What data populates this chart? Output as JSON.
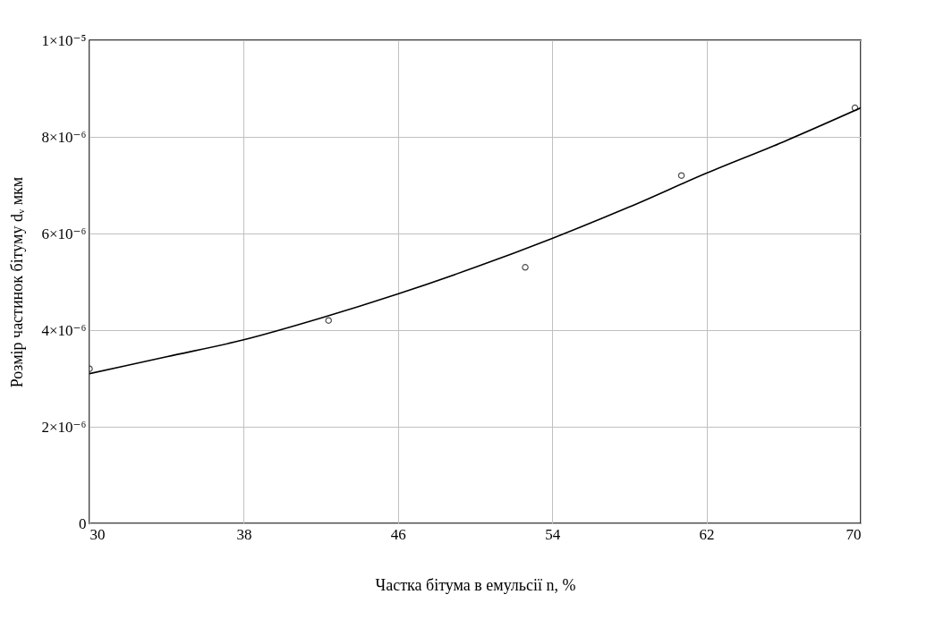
{
  "chart_data": {
    "type": "scatter",
    "xlabel": "Частка бітума в емульсії n, %",
    "ylabel": "Розмір частинок бітуму dᵥ мкм",
    "series": [
      {
        "color": "#000000",
        "marker": "circle",
        "x": [
          30,
          42.4,
          52.6,
          60.7,
          69.7
        ],
        "values": [
          3.2e-06,
          4.2e-06,
          5.3e-06,
          7.2e-06,
          8.6e-06
        ]
      },
      {
        "type": "line",
        "color": "#000000",
        "marker": "none",
        "line_style": "solid",
        "x": [
          30,
          34,
          38,
          42,
          46,
          50,
          54,
          58,
          62,
          66,
          70
        ],
        "values": [
          3.1e-06,
          3.45e-06,
          3.8e-06,
          4.25e-06,
          4.75e-06,
          5.3e-06,
          5.9e-06,
          6.55e-06,
          7.25e-06,
          7.9e-06,
          8.6e-06
        ]
      }
    ],
    "xlim": [
      30,
      70
    ],
    "xticks": [
      30,
      38,
      46,
      54,
      62,
      70
    ],
    "ylim": [
      0,
      1e-05
    ],
    "yticks": [
      {
        "value": 0,
        "label": "0"
      },
      {
        "value": 2e-06,
        "label": "2×10⁻⁶"
      },
      {
        "value": 4e-06,
        "label": "4×10⁻⁶"
      },
      {
        "value": 6e-06,
        "label": "6×10⁻⁶"
      },
      {
        "value": 8e-06,
        "label": "8×10⁻⁶"
      },
      {
        "value": 1e-05,
        "label": "1×10⁻⁵"
      }
    ],
    "grid": true
  }
}
